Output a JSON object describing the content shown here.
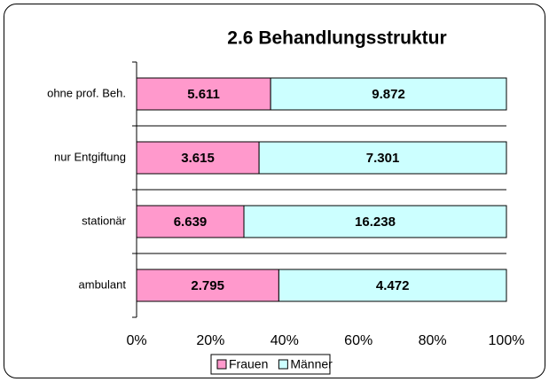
{
  "chart_data": {
    "type": "bar",
    "orientation": "horizontal",
    "stacked": "percent",
    "title": "2.6  Behandlungsstruktur",
    "categories": [
      "ohne prof. Beh.",
      "nur Entgiftung",
      "stationär",
      "ambulant"
    ],
    "series": [
      {
        "name": "Frauen",
        "color": "#ff99cc",
        "values": [
          5611,
          3615,
          6639,
          2795
        ],
        "value_labels": [
          "5.611",
          "3.615",
          "6.639",
          "2.795"
        ]
      },
      {
        "name": "Männer",
        "color": "#ccffff",
        "values": [
          9872,
          7301,
          16238,
          4472
        ],
        "value_labels": [
          "9.872",
          "7.301",
          "16.238",
          "4.472"
        ]
      }
    ],
    "xlim": [
      0,
      100
    ],
    "xticks": [
      {
        "value": 0,
        "label": "0%"
      },
      {
        "value": 20,
        "label": "20%"
      },
      {
        "value": 40,
        "label": "40%"
      },
      {
        "value": 60,
        "label": "60%"
      },
      {
        "value": 80,
        "label": "80%"
      },
      {
        "value": 100,
        "label": "100%"
      }
    ],
    "legend": "bottom"
  }
}
